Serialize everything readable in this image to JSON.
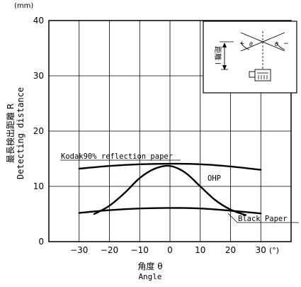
{
  "chart_data": {
    "type": "line",
    "unit_label": "(mm)",
    "ylabel": [
      "最長検出距離 R",
      "Detecting distance"
    ],
    "xlabel": [
      "角度 θ",
      "Angle"
    ],
    "x_unit": "(°)",
    "xlim": [
      -40,
      40
    ],
    "ylim": [
      0,
      40
    ],
    "xticks": [
      -30,
      -20,
      -10,
      0,
      10,
      20,
      30
    ],
    "yticks": [
      0,
      10,
      20,
      30,
      40
    ],
    "xtick_labels": [
      "−30",
      "−20",
      "−10",
      "0",
      "10",
      "20",
      "30"
    ],
    "ytick_labels": [
      "0",
      "10",
      "20",
      "30",
      "40"
    ],
    "grid": true,
    "series": [
      {
        "name": "Kodak90% reflection paper",
        "x": [
          -30,
          -20,
          -10,
          0,
          10,
          20,
          30
        ],
        "y": [
          13.2,
          13.7,
          14.0,
          14.1,
          14.0,
          13.6,
          13.0
        ]
      },
      {
        "name": "OHP",
        "x": [
          -25,
          -20,
          -15,
          -10,
          -5,
          0,
          5,
          10,
          15,
          20,
          25
        ],
        "y": [
          5.0,
          6.5,
          8.8,
          11.5,
          13.2,
          13.7,
          12.5,
          10.0,
          7.5,
          5.8,
          4.8
        ]
      },
      {
        "name": "Black Paper",
        "x": [
          -30,
          -20,
          -10,
          0,
          10,
          20,
          30
        ],
        "y": [
          5.2,
          5.7,
          6.0,
          6.1,
          6.0,
          5.6,
          5.1
        ]
      }
    ],
    "inset": {
      "distance_label": "距離 l",
      "plus": "+",
      "minus": "−",
      "theta": "θ"
    }
  }
}
